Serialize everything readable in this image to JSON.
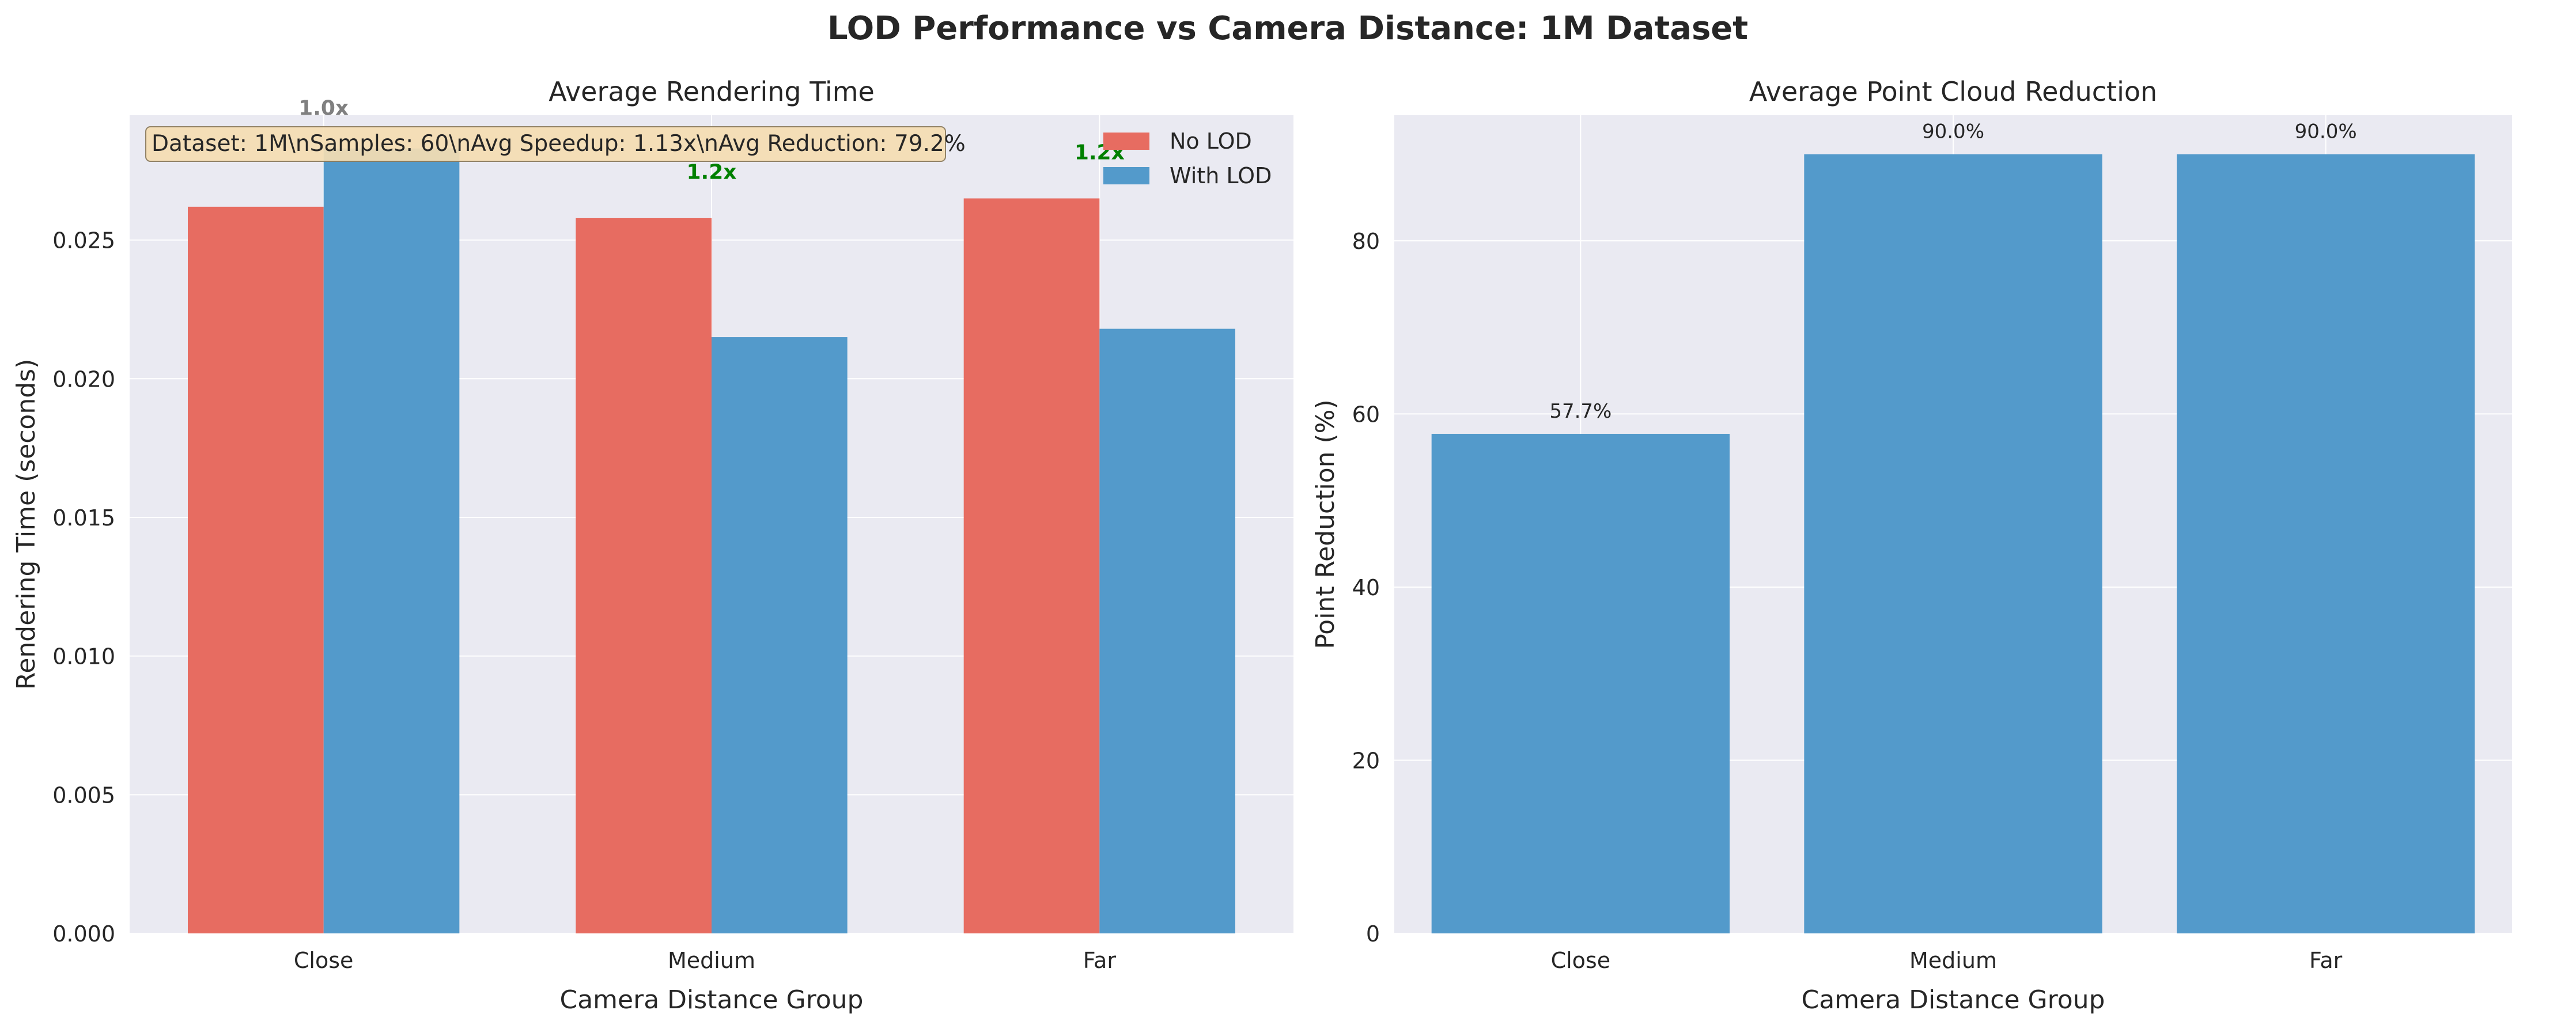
{
  "figure": {
    "suptitle": "LOD Performance vs Camera Distance: 1M Dataset"
  },
  "colors": {
    "no_lod": "#e76c61",
    "with_lod": "#539acb",
    "reduction": "#539acb",
    "plot_bg": "#eaeaf2",
    "grid": "#ffffff",
    "speedup_good": "#008000",
    "speedup_neutral": "#808080",
    "infobox_fill": "#f5deb3",
    "infobox_edge": "#8a7a5c",
    "text": "#262626"
  },
  "chart_data": [
    {
      "type": "bar",
      "title": "Average Rendering Time",
      "xlabel": "Camera Distance Group",
      "ylabel": "Rendering Time (seconds)",
      "categories": [
        "Close",
        "Medium",
        "Far"
      ],
      "series": [
        {
          "name": "No LOD",
          "values": [
            0.0262,
            0.0258,
            0.0265
          ]
        },
        {
          "name": "With LOD",
          "values": [
            0.0283,
            0.0215,
            0.0218
          ]
        }
      ],
      "ylim": [
        0,
        0.0295
      ],
      "yticks": [
        0.0,
        0.005,
        0.01,
        0.015,
        0.02,
        0.025
      ],
      "ytick_labels": [
        "0.000",
        "0.005",
        "0.010",
        "0.015",
        "0.020",
        "0.025"
      ],
      "speedup_labels": [
        "1.0x",
        "1.2x",
        "1.2x"
      ],
      "speedup_label_y": [
        0.0298,
        0.0275,
        0.0282
      ],
      "speedup_colors": [
        "neutral",
        "good",
        "good"
      ],
      "legend_position": "top-right",
      "grid": true,
      "info_box": "Dataset: 1M\\nSamples: 60\\nAvg Speedup: 1.13x\\nAvg Reduction: 79.2%"
    },
    {
      "type": "bar",
      "title": "Average Point Cloud Reduction",
      "xlabel": "Camera Distance Group",
      "ylabel": "Point Reduction (%)",
      "categories": [
        "Close",
        "Medium",
        "Far"
      ],
      "values": [
        57.7,
        90.0,
        90.0
      ],
      "value_labels": [
        "57.7%",
        "90.0%",
        "90.0%"
      ],
      "ylim": [
        0,
        94.5
      ],
      "yticks": [
        0,
        20,
        40,
        60,
        80
      ],
      "ytick_labels": [
        "0",
        "20",
        "40",
        "60",
        "80"
      ],
      "grid": true
    }
  ]
}
